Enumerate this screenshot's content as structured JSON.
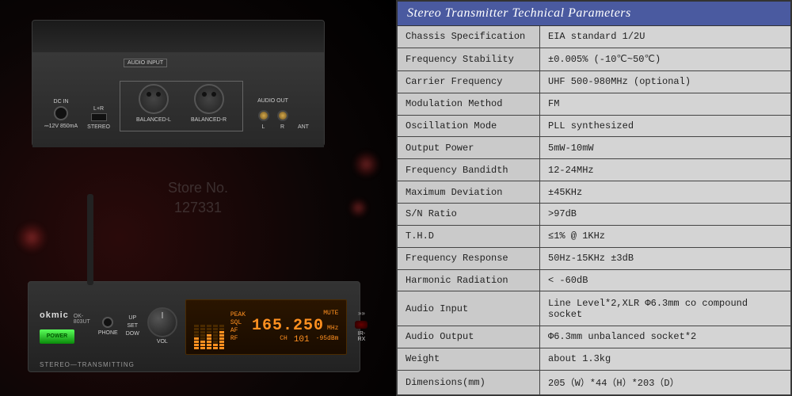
{
  "watermark": {
    "line1": "Store No.",
    "line2": "127331"
  },
  "rear": {
    "dc_label": "DC IN",
    "dc_spec": "⎓12V 850mA",
    "stereo_label": "STEREO",
    "lr_label": "L+R",
    "input_box_title": "AUDIO INPUT",
    "bal_l": "BALANCED-L",
    "bal_r": "BALANCED-R",
    "audio_out": "AUDIO OUT",
    "out_l": "L",
    "out_r": "R",
    "ant": "ANT"
  },
  "front": {
    "brand": "okmic",
    "model": "OK-803UT",
    "power": "POWER",
    "phone": "PHONE",
    "up": "UP",
    "down": "DOW",
    "set": "SET",
    "vol": "VOL",
    "stereo_transmitting": "STEREO—TRANSMITTING",
    "irrx": "IR-RX"
  },
  "display": {
    "peak": "PEAK",
    "ch_label": "CH",
    "ch_val": "101",
    "freq": "165.250",
    "mhz": "MHz",
    "mute": "MUTE",
    "rf": "-95dBm",
    "sql": "SQL",
    "af": "AF",
    "rf_lbl": "RF"
  },
  "table": {
    "title": "Stereo Transmitter Technical Parameters",
    "rows": [
      {
        "k": "Chassis Specification",
        "v": "EIA standard 1/2U"
      },
      {
        "k": "Frequency Stability",
        "v": "±0.005% (-10℃~50℃)"
      },
      {
        "k": "Carrier Frequency",
        "v": "UHF 500-980MHz (optional)"
      },
      {
        "k": "Modulation Method",
        "v": "FM"
      },
      {
        "k": "Oscillation Mode",
        "v": "PLL synthesized"
      },
      {
        "k": "Output Power",
        "v": "5mW-10mW"
      },
      {
        "k": "Frequency Bandidth",
        "v": "12-24MHz"
      },
      {
        "k": "Maximum Deviation",
        "v": "±45KHz"
      },
      {
        "k": "S/N Ratio",
        "v": ">97dB"
      },
      {
        "k": "T.H.D",
        "v": "≤1% @ 1KHz"
      },
      {
        "k": "Frequency Response",
        "v": "50Hz-15KHz ±3dB"
      },
      {
        "k": "Harmonic Radiation",
        "v": "< -60dB"
      },
      {
        "k": "Audio Input",
        "v": "Line Level*2,XLR Φ6.3mm co compound socket"
      },
      {
        "k": "Audio Output",
        "v": "Φ6.3mm unbalanced socket*2"
      },
      {
        "k": "Weight",
        "v": "about 1.3kg"
      },
      {
        "k": "Dimensions(mm)",
        "v": "205（W）*44（H）*203（D）"
      }
    ]
  }
}
